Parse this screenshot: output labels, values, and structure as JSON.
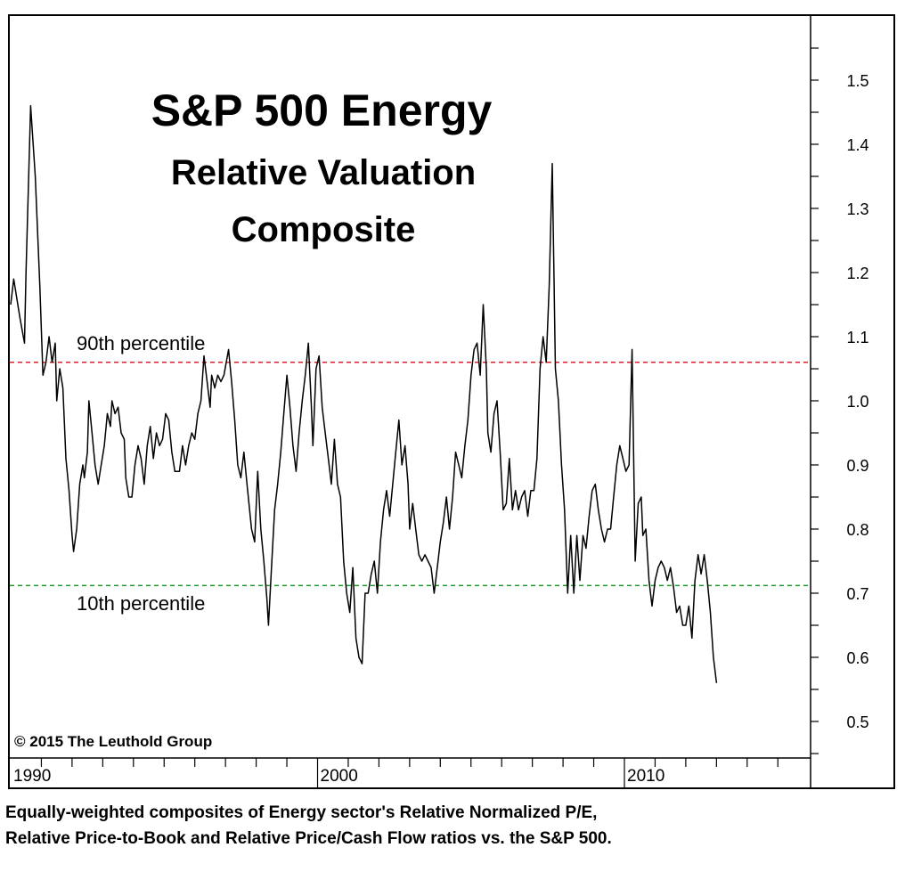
{
  "chart_data": {
    "type": "line",
    "title": "S&P 500 Energy",
    "subtitle_lines": [
      "Relative Valuation",
      "Composite"
    ],
    "copyright": "© 2015 The Leuthold Group",
    "caption_lines": [
      "Equally-weighted composites of Energy sector's Relative Normalized P/E,",
      "Relative Price-to-Book and Relative Price/Cash Flow ratios vs. the S&P 500."
    ],
    "x_tick_labels": [
      "1990",
      "2000",
      "2010"
    ],
    "y_tick_labels": [
      "1.5",
      "1.4",
      "1.3",
      "1.2",
      "1.1",
      "1.0",
      "0.9",
      "0.8",
      "0.7",
      "0.6",
      "0.5"
    ],
    "xlim": [
      1990,
      2016
    ],
    "ylim": [
      0.44,
      1.61
    ],
    "grid": false,
    "y_axis_side": "right",
    "reference_lines": [
      {
        "name": "90th percentile",
        "value": 1.06,
        "color": "#e0202c"
      },
      {
        "name": "10th percentile",
        "value": 0.712,
        "color": "#1f9a2e"
      }
    ],
    "series": [
      {
        "color": "#000000",
        "points": [
          [
            1990.0,
            1.15
          ],
          [
            1990.1,
            1.19
          ],
          [
            1990.3,
            1.13
          ],
          [
            1990.45,
            1.09
          ],
          [
            1990.5,
            1.2
          ],
          [
            1990.65,
            1.46
          ],
          [
            1990.8,
            1.35
          ],
          [
            1990.95,
            1.18
          ],
          [
            1991.05,
            1.04
          ],
          [
            1991.15,
            1.06
          ],
          [
            1991.25,
            1.1
          ],
          [
            1991.35,
            1.06
          ],
          [
            1991.45,
            1.09
          ],
          [
            1991.5,
            1.0
          ],
          [
            1991.6,
            1.05
          ],
          [
            1991.7,
            1.02
          ],
          [
            1991.8,
            0.91
          ],
          [
            1991.9,
            0.86
          ],
          [
            1992.0,
            0.79
          ],
          [
            1992.05,
            0.765
          ],
          [
            1992.15,
            0.8
          ],
          [
            1992.25,
            0.87
          ],
          [
            1992.35,
            0.9
          ],
          [
            1992.4,
            0.88
          ],
          [
            1992.5,
            0.92
          ],
          [
            1992.55,
            1.0
          ],
          [
            1992.65,
            0.95
          ],
          [
            1992.75,
            0.9
          ],
          [
            1992.85,
            0.87
          ],
          [
            1992.95,
            0.9
          ],
          [
            1993.05,
            0.93
          ],
          [
            1993.15,
            0.98
          ],
          [
            1993.25,
            0.96
          ],
          [
            1993.3,
            1.0
          ],
          [
            1993.4,
            0.98
          ],
          [
            1993.5,
            0.99
          ],
          [
            1993.6,
            0.95
          ],
          [
            1993.7,
            0.94
          ],
          [
            1993.75,
            0.88
          ],
          [
            1993.85,
            0.85
          ],
          [
            1993.95,
            0.85
          ],
          [
            1994.05,
            0.9
          ],
          [
            1994.15,
            0.93
          ],
          [
            1994.25,
            0.91
          ],
          [
            1994.35,
            0.87
          ],
          [
            1994.45,
            0.93
          ],
          [
            1994.55,
            0.96
          ],
          [
            1994.65,
            0.91
          ],
          [
            1994.75,
            0.95
          ],
          [
            1994.85,
            0.93
          ],
          [
            1994.95,
            0.94
          ],
          [
            1995.05,
            0.98
          ],
          [
            1995.15,
            0.97
          ],
          [
            1995.25,
            0.92
          ],
          [
            1995.35,
            0.89
          ],
          [
            1995.5,
            0.89
          ],
          [
            1995.6,
            0.93
          ],
          [
            1995.7,
            0.9
          ],
          [
            1995.8,
            0.93
          ],
          [
            1995.9,
            0.95
          ],
          [
            1996.0,
            0.94
          ],
          [
            1996.1,
            0.98
          ],
          [
            1996.2,
            1.0
          ],
          [
            1996.3,
            1.07
          ],
          [
            1996.4,
            1.03
          ],
          [
            1996.5,
            0.99
          ],
          [
            1996.55,
            1.04
          ],
          [
            1996.65,
            1.02
          ],
          [
            1996.75,
            1.04
          ],
          [
            1996.85,
            1.03
          ],
          [
            1996.95,
            1.04
          ],
          [
            1997.1,
            1.08
          ],
          [
            1997.2,
            1.03
          ],
          [
            1997.3,
            0.97
          ],
          [
            1997.4,
            0.9
          ],
          [
            1997.5,
            0.88
          ],
          [
            1997.6,
            0.92
          ],
          [
            1997.7,
            0.87
          ],
          [
            1997.85,
            0.8
          ],
          [
            1997.95,
            0.78
          ],
          [
            1998.05,
            0.89
          ],
          [
            1998.15,
            0.8
          ],
          [
            1998.25,
            0.75
          ],
          [
            1998.35,
            0.69
          ],
          [
            1998.4,
            0.65
          ],
          [
            1998.5,
            0.74
          ],
          [
            1998.6,
            0.83
          ],
          [
            1998.7,
            0.87
          ],
          [
            1998.8,
            0.92
          ],
          [
            1998.9,
            0.98
          ],
          [
            1999.0,
            1.04
          ],
          [
            1999.1,
            0.99
          ],
          [
            1999.2,
            0.93
          ],
          [
            1999.3,
            0.89
          ],
          [
            1999.4,
            0.95
          ],
          [
            1999.5,
            1.0
          ],
          [
            1999.6,
            1.04
          ],
          [
            1999.7,
            1.09
          ],
          [
            1999.8,
            0.99
          ],
          [
            1999.85,
            0.93
          ],
          [
            1999.95,
            1.05
          ],
          [
            2000.05,
            1.07
          ],
          [
            2000.15,
            0.99
          ],
          [
            2000.25,
            0.95
          ],
          [
            2000.35,
            0.91
          ],
          [
            2000.45,
            0.87
          ],
          [
            2000.55,
            0.94
          ],
          [
            2000.65,
            0.87
          ],
          [
            2000.75,
            0.85
          ],
          [
            2000.85,
            0.75
          ],
          [
            2000.95,
            0.7
          ],
          [
            2001.05,
            0.67
          ],
          [
            2001.15,
            0.74
          ],
          [
            2001.25,
            0.63
          ],
          [
            2001.35,
            0.6
          ],
          [
            2001.45,
            0.59
          ],
          [
            2001.55,
            0.7
          ],
          [
            2001.65,
            0.7
          ],
          [
            2001.75,
            0.73
          ],
          [
            2001.85,
            0.75
          ],
          [
            2001.95,
            0.7
          ],
          [
            2002.05,
            0.78
          ],
          [
            2002.15,
            0.83
          ],
          [
            2002.25,
            0.86
          ],
          [
            2002.35,
            0.82
          ],
          [
            2002.45,
            0.87
          ],
          [
            2002.55,
            0.92
          ],
          [
            2002.65,
            0.97
          ],
          [
            2002.75,
            0.9
          ],
          [
            2002.85,
            0.93
          ],
          [
            2002.95,
            0.87
          ],
          [
            2003.0,
            0.8
          ],
          [
            2003.1,
            0.84
          ],
          [
            2003.2,
            0.8
          ],
          [
            2003.3,
            0.76
          ],
          [
            2003.4,
            0.75
          ],
          [
            2003.5,
            0.76
          ],
          [
            2003.6,
            0.75
          ],
          [
            2003.7,
            0.74
          ],
          [
            2003.8,
            0.7
          ],
          [
            2003.9,
            0.74
          ],
          [
            2004.0,
            0.78
          ],
          [
            2004.1,
            0.81
          ],
          [
            2004.2,
            0.85
          ],
          [
            2004.3,
            0.8
          ],
          [
            2004.4,
            0.85
          ],
          [
            2004.5,
            0.92
          ],
          [
            2004.6,
            0.9
          ],
          [
            2004.7,
            0.88
          ],
          [
            2004.8,
            0.93
          ],
          [
            2004.9,
            0.97
          ],
          [
            2005.0,
            1.04
          ],
          [
            2005.1,
            1.08
          ],
          [
            2005.2,
            1.09
          ],
          [
            2005.3,
            1.04
          ],
          [
            2005.4,
            1.15
          ],
          [
            2005.5,
            1.05
          ],
          [
            2005.55,
            0.95
          ],
          [
            2005.65,
            0.92
          ],
          [
            2005.75,
            0.98
          ],
          [
            2005.85,
            1.0
          ],
          [
            2005.95,
            0.92
          ],
          [
            2006.05,
            0.83
          ],
          [
            2006.15,
            0.84
          ],
          [
            2006.25,
            0.91
          ],
          [
            2006.35,
            0.83
          ],
          [
            2006.45,
            0.86
          ],
          [
            2006.55,
            0.83
          ],
          [
            2006.65,
            0.85
          ],
          [
            2006.75,
            0.86
          ],
          [
            2006.85,
            0.82
          ],
          [
            2006.95,
            0.86
          ],
          [
            2007.05,
            0.86
          ],
          [
            2007.15,
            0.91
          ],
          [
            2007.25,
            1.05
          ],
          [
            2007.35,
            1.1
          ],
          [
            2007.45,
            1.06
          ],
          [
            2007.55,
            1.18
          ],
          [
            2007.65,
            1.37
          ],
          [
            2007.75,
            1.05
          ],
          [
            2007.85,
            1.0
          ],
          [
            2007.95,
            0.9
          ],
          [
            2008.05,
            0.83
          ],
          [
            2008.15,
            0.7
          ],
          [
            2008.25,
            0.79
          ],
          [
            2008.35,
            0.7
          ],
          [
            2008.45,
            0.79
          ],
          [
            2008.55,
            0.72
          ],
          [
            2008.65,
            0.79
          ],
          [
            2008.75,
            0.77
          ],
          [
            2008.85,
            0.82
          ],
          [
            2008.95,
            0.86
          ],
          [
            2009.05,
            0.87
          ],
          [
            2009.15,
            0.83
          ],
          [
            2009.25,
            0.8
          ],
          [
            2009.35,
            0.78
          ],
          [
            2009.45,
            0.8
          ],
          [
            2009.55,
            0.8
          ],
          [
            2009.65,
            0.85
          ],
          [
            2009.75,
            0.9
          ],
          [
            2009.85,
            0.93
          ],
          [
            2009.95,
            0.91
          ],
          [
            2010.05,
            0.89
          ],
          [
            2010.15,
            0.9
          ],
          [
            2010.25,
            1.08
          ],
          [
            2010.35,
            0.75
          ],
          [
            2010.45,
            0.84
          ],
          [
            2010.55,
            0.85
          ],
          [
            2010.6,
            0.79
          ],
          [
            2010.7,
            0.8
          ],
          [
            2010.8,
            0.72
          ],
          [
            2010.9,
            0.68
          ],
          [
            2011.0,
            0.72
          ],
          [
            2011.1,
            0.74
          ],
          [
            2011.2,
            0.75
          ],
          [
            2011.3,
            0.74
          ],
          [
            2011.4,
            0.72
          ],
          [
            2011.5,
            0.74
          ],
          [
            2011.6,
            0.71
          ],
          [
            2011.7,
            0.67
          ],
          [
            2011.8,
            0.68
          ],
          [
            2011.9,
            0.65
          ],
          [
            2012.0,
            0.65
          ],
          [
            2012.1,
            0.68
          ],
          [
            2012.2,
            0.63
          ],
          [
            2012.3,
            0.72
          ],
          [
            2012.4,
            0.76
          ],
          [
            2012.5,
            0.73
          ],
          [
            2012.6,
            0.76
          ],
          [
            2012.7,
            0.72
          ],
          [
            2012.8,
            0.67
          ],
          [
            2012.9,
            0.6
          ],
          [
            2013.0,
            0.56
          ]
        ]
      }
    ]
  }
}
